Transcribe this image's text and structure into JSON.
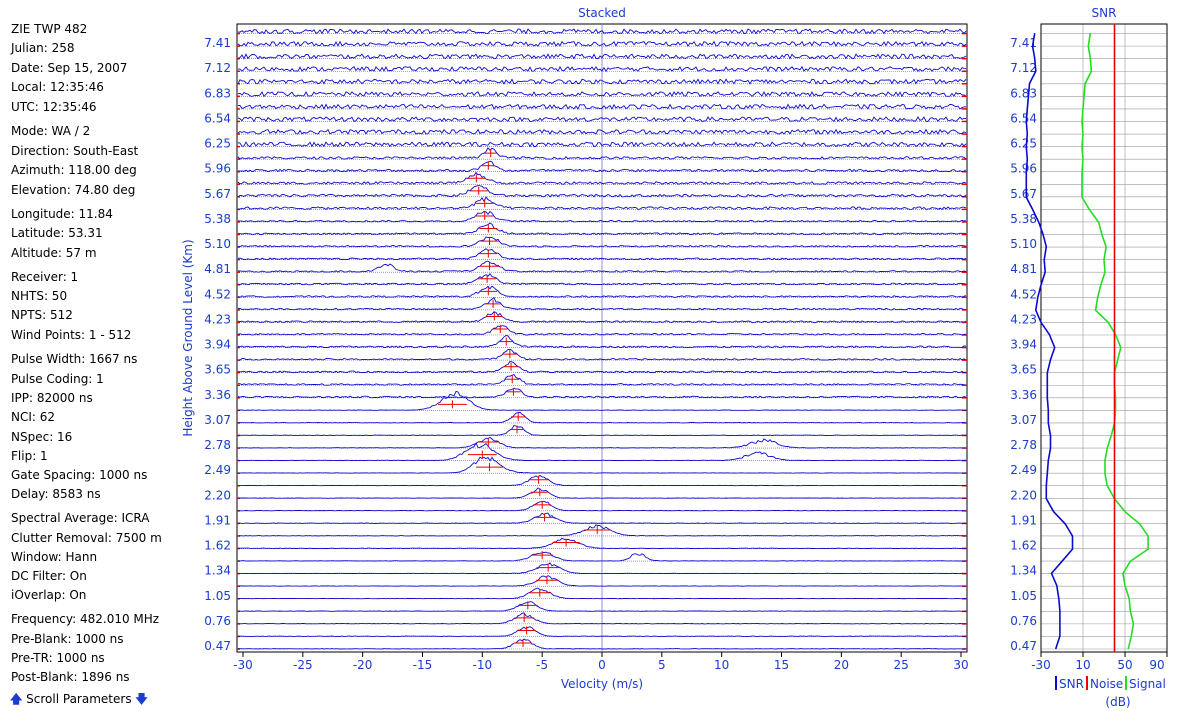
{
  "params": [
    {
      "label": "ZIE TWP 482"
    },
    {
      "label": "Julian: 258"
    },
    {
      "label": "Date: Sep 15, 2007"
    },
    {
      "label": "Local: 12:35:46"
    },
    {
      "label": "UTC: 12:35:46"
    },
    {
      "label": "Mode: WA / 2"
    },
    {
      "label": "Direction: South-East"
    },
    {
      "label": "Azimuth: 118.00 deg"
    },
    {
      "label": "Elevation: 74.80 deg"
    },
    {
      "label": "Longitude: 11.84"
    },
    {
      "label": "Latitude: 53.31"
    },
    {
      "label": "Altitude: 57 m"
    },
    {
      "label": "Receiver: 1"
    },
    {
      "label": "NHTS: 50"
    },
    {
      "label": "NPTS: 512"
    },
    {
      "label": "Wind Points: 1 - 512"
    },
    {
      "label": "Pulse Width: 1667 ns"
    },
    {
      "label": "Pulse Coding: 1"
    },
    {
      "label": "IPP: 82000 ns"
    },
    {
      "label": "NCI: 62"
    },
    {
      "label": "NSpec: 16"
    },
    {
      "label": "Flip: 1"
    },
    {
      "label": "Gate Spacing: 1000 ns"
    },
    {
      "label": "Delay: 8583 ns"
    },
    {
      "label": "Spectral Average: ICRA"
    },
    {
      "label": "Clutter Removal: 7500 m"
    },
    {
      "label": "Window: Hann"
    },
    {
      "label": "DC Filter: On"
    },
    {
      "label": "iOverlap: On"
    },
    {
      "label": "Frequency: 482.010 MHz"
    },
    {
      "label": "Pre-Blank: 1000 ns"
    },
    {
      "label": "Pre-TR: 1000 ns"
    },
    {
      "label": "Post-Blank: 1896 ns"
    }
  ],
  "scroll_label": "Scroll Parameters",
  "colors": {
    "axis": "#1a3cd0",
    "trace": "#0a0ad0",
    "red": "#ee0000",
    "grid": "#b0b0b0",
    "signal": "#22dd22"
  },
  "chart_data": [
    {
      "type": "line",
      "title": "Stacked",
      "xlabel": "Velocity (m/s)",
      "ylabel": "Height Above Ground Level (Km)",
      "xlim": [
        -30.5,
        30.5
      ],
      "xticks": [
        -30,
        -25,
        -20,
        -15,
        -10,
        -5,
        0,
        5,
        10,
        15,
        20,
        25,
        30
      ],
      "ytick_labels": [
        "0.47",
        "0.76",
        "1.05",
        "1.34",
        "1.62",
        "1.91",
        "2.20",
        "2.49",
        "2.78",
        "3.07",
        "3.36",
        "3.65",
        "3.94",
        "4.23",
        "4.52",
        "4.81",
        "5.10",
        "5.38",
        "5.67",
        "5.96",
        "6.25",
        "6.54",
        "6.83",
        "7.12",
        "7.41"
      ],
      "gates": 50,
      "peaks": [
        {
          "v": -6.6,
          "w": 1.0
        },
        {
          "v": -6.3,
          "w": 1.0
        },
        {
          "v": -6.5,
          "w": 1.1
        },
        {
          "v": -6.2,
          "w": 1.1
        },
        {
          "v": -5.2,
          "w": 1.2
        },
        {
          "v": -4.6,
          "w": 1.2
        },
        {
          "v": -4.5,
          "w": 1.3
        },
        {
          "v": -5.0,
          "w": 1.2
        },
        {
          "v": -3.0,
          "w": 1.5
        },
        {
          "v": -0.4,
          "w": 1.5
        },
        {
          "v": -4.8,
          "w": 1.2
        },
        {
          "v": -5.0,
          "w": 1.0
        },
        {
          "v": -5.2,
          "w": 1.0
        },
        {
          "v": -5.3,
          "w": 1.1
        },
        {
          "v": -9.4,
          "w": 1.5
        },
        {
          "v": -10.0,
          "w": 1.6
        },
        {
          "v": -9.5,
          "w": 1.2
        },
        {
          "v": -7.1,
          "w": 0.8
        },
        {
          "v": -7.0,
          "w": 0.8
        },
        {
          "v": -12.5,
          "w": 1.6
        },
        {
          "v": -7.4,
          "w": 0.8
        },
        {
          "v": -7.5,
          "w": 0.8
        },
        {
          "v": -7.6,
          "w": 0.8
        },
        {
          "v": -7.7,
          "w": 0.8
        },
        {
          "v": -8.0,
          "w": 0.8
        },
        {
          "v": -8.5,
          "w": 0.8
        },
        {
          "v": -9.0,
          "w": 0.9
        },
        {
          "v": -9.1,
          "w": 0.9
        },
        {
          "v": -9.5,
          "w": 1.0
        },
        {
          "v": -9.6,
          "w": 1.0
        },
        {
          "v": -9.4,
          "w": 1.0
        },
        {
          "v": -9.5,
          "w": 1.0
        },
        {
          "v": -9.4,
          "w": 1.0
        },
        {
          "v": -9.5,
          "w": 1.0
        },
        {
          "v": -9.8,
          "w": 1.0
        },
        {
          "v": -9.8,
          "w": 1.0
        },
        {
          "v": -10.3,
          "w": 1.0
        },
        {
          "v": -10.5,
          "w": 1.0
        },
        {
          "v": -9.5,
          "w": 0.7
        },
        {
          "v": -9.3,
          "w": 0.7
        }
      ],
      "secondary": [
        {
          "gate": 7,
          "v": 3.0,
          "w": 0.8
        },
        {
          "gate": 14,
          "v": -10.0,
          "w": 1.2
        },
        {
          "gate": 15,
          "v": -10.5,
          "w": 1.5
        },
        {
          "gate": 15,
          "v": 13.0,
          "w": 1.4
        },
        {
          "gate": 16,
          "v": 13.5,
          "w": 1.5
        },
        {
          "gate": 19,
          "v": -12.0,
          "w": 1.5
        },
        {
          "gate": 30,
          "v": -18.0,
          "w": 0.8
        }
      ]
    },
    {
      "type": "line",
      "title": "SNR",
      "xlabel": "(dB)",
      "xlim": [
        -30,
        90
      ],
      "xticks": [
        -30,
        10,
        50,
        90
      ],
      "xtick_labels": [
        "-30",
        "10",
        "50",
        "90"
      ],
      "legend": [
        "SNR",
        "Noise",
        "Signal"
      ],
      "ytick_labels": [
        "0.47",
        "0.76",
        "1.05",
        "1.34",
        "1.62",
        "1.91",
        "2.20",
        "2.49",
        "2.78",
        "3.07",
        "3.36",
        "3.65",
        "3.94",
        "4.23",
        "4.52",
        "4.81",
        "5.10",
        "5.38",
        "5.67",
        "5.96",
        "6.25",
        "6.54",
        "6.83",
        "7.12",
        "7.41"
      ],
      "noise": 40,
      "series": [
        {
          "name": "SNR",
          "values": [
            {
              "h": 0.47,
              "x": -16
            },
            {
              "h": 0.62,
              "x": -12
            },
            {
              "h": 0.76,
              "x": -12
            },
            {
              "h": 0.91,
              "x": -12
            },
            {
              "h": 1.05,
              "x": -13
            },
            {
              "h": 1.2,
              "x": -15
            },
            {
              "h": 1.34,
              "x": -20
            },
            {
              "h": 1.48,
              "x": -10
            },
            {
              "h": 1.62,
              "x": 0
            },
            {
              "h": 1.77,
              "x": 0
            },
            {
              "h": 1.91,
              "x": -7
            },
            {
              "h": 2.05,
              "x": -18
            },
            {
              "h": 2.2,
              "x": -25
            },
            {
              "h": 2.35,
              "x": -25
            },
            {
              "h": 2.49,
              "x": -24
            },
            {
              "h": 2.64,
              "x": -23
            },
            {
              "h": 2.78,
              "x": -21
            },
            {
              "h": 2.93,
              "x": -21
            },
            {
              "h": 3.07,
              "x": -23
            },
            {
              "h": 3.22,
              "x": -23
            },
            {
              "h": 3.36,
              "x": -24
            },
            {
              "h": 3.51,
              "x": -24
            },
            {
              "h": 3.65,
              "x": -24
            },
            {
              "h": 3.8,
              "x": -21
            },
            {
              "h": 3.94,
              "x": -17
            },
            {
              "h": 4.09,
              "x": -22
            },
            {
              "h": 4.23,
              "x": -30
            },
            {
              "h": 4.37,
              "x": -35
            },
            {
              "h": 4.52,
              "x": -33
            },
            {
              "h": 4.66,
              "x": -30
            },
            {
              "h": 4.81,
              "x": -26
            },
            {
              "h": 4.95,
              "x": -27
            },
            {
              "h": 5.1,
              "x": -25
            },
            {
              "h": 5.24,
              "x": -28
            },
            {
              "h": 5.38,
              "x": -32
            },
            {
              "h": 5.53,
              "x": -38
            },
            {
              "h": 5.67,
              "x": -44
            },
            {
              "h": 5.82,
              "x": -44
            },
            {
              "h": 5.96,
              "x": -44
            },
            {
              "h": 6.11,
              "x": -43
            },
            {
              "h": 6.25,
              "x": -44
            },
            {
              "h": 6.4,
              "x": -43
            },
            {
              "h": 6.54,
              "x": -44
            },
            {
              "h": 6.69,
              "x": -43
            },
            {
              "h": 6.83,
              "x": -42
            },
            {
              "h": 6.98,
              "x": -41
            },
            {
              "h": 7.12,
              "x": -35
            },
            {
              "h": 7.27,
              "x": -36
            },
            {
              "h": 7.41,
              "x": -38
            },
            {
              "h": 7.56,
              "x": -36
            }
          ]
        },
        {
          "name": "Signal",
          "values": [
            {
              "h": 0.47,
              "x": 53
            },
            {
              "h": 0.62,
              "x": 56
            },
            {
              "h": 0.76,
              "x": 58
            },
            {
              "h": 0.91,
              "x": 55
            },
            {
              "h": 1.05,
              "x": 54
            },
            {
              "h": 1.2,
              "x": 50
            },
            {
              "h": 1.34,
              "x": 48
            },
            {
              "h": 1.48,
              "x": 55
            },
            {
              "h": 1.62,
              "x": 72
            },
            {
              "h": 1.77,
              "x": 72
            },
            {
              "h": 1.91,
              "x": 64
            },
            {
              "h": 2.05,
              "x": 50
            },
            {
              "h": 2.2,
              "x": 40
            },
            {
              "h": 2.35,
              "x": 33
            },
            {
              "h": 2.49,
              "x": 31
            },
            {
              "h": 2.64,
              "x": 31
            },
            {
              "h": 2.78,
              "x": 33
            },
            {
              "h": 2.93,
              "x": 37
            },
            {
              "h": 3.07,
              "x": 40
            },
            {
              "h": 3.22,
              "x": 41
            },
            {
              "h": 3.36,
              "x": 41
            },
            {
              "h": 3.51,
              "x": 40
            },
            {
              "h": 3.65,
              "x": 40
            },
            {
              "h": 3.8,
              "x": 43
            },
            {
              "h": 3.94,
              "x": 46
            },
            {
              "h": 4.09,
              "x": 41
            },
            {
              "h": 4.23,
              "x": 34
            },
            {
              "h": 4.37,
              "x": 22
            },
            {
              "h": 4.52,
              "x": 24
            },
            {
              "h": 4.66,
              "x": 27
            },
            {
              "h": 4.81,
              "x": 31
            },
            {
              "h": 4.95,
              "x": 30
            },
            {
              "h": 5.1,
              "x": 32
            },
            {
              "h": 5.24,
              "x": 28
            },
            {
              "h": 5.38,
              "x": 25
            },
            {
              "h": 5.53,
              "x": 16
            },
            {
              "h": 5.67,
              "x": 9
            },
            {
              "h": 5.82,
              "x": 9
            },
            {
              "h": 5.96,
              "x": 9
            },
            {
              "h": 6.11,
              "x": 10
            },
            {
              "h": 6.25,
              "x": 9
            },
            {
              "h": 6.4,
              "x": 10
            },
            {
              "h": 6.54,
              "x": 9
            },
            {
              "h": 6.69,
              "x": 10
            },
            {
              "h": 6.83,
              "x": 11
            },
            {
              "h": 6.98,
              "x": 12
            },
            {
              "h": 7.12,
              "x": 18
            },
            {
              "h": 7.27,
              "x": 17
            },
            {
              "h": 7.41,
              "x": 15
            },
            {
              "h": 7.56,
              "x": 17
            }
          ]
        }
      ]
    }
  ]
}
